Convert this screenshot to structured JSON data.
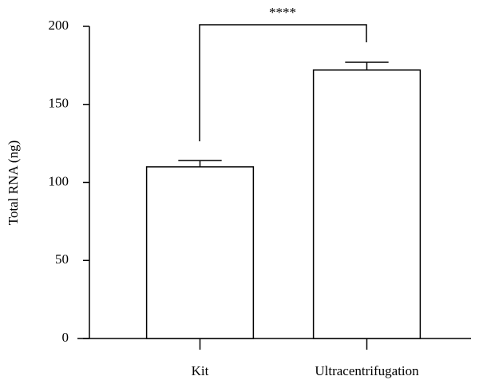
{
  "chart_data": {
    "type": "bar",
    "y_label": "Total RNA (ng)",
    "categories": [
      "Kit",
      "Ultracentrifugation"
    ],
    "values": [
      110,
      172
    ],
    "errors": [
      4,
      5
    ],
    "color": "#ffffff",
    "ylim": [
      0,
      200
    ],
    "yticks": [
      0,
      50,
      100,
      150,
      200
    ],
    "grid": false,
    "annotation": "****"
  }
}
